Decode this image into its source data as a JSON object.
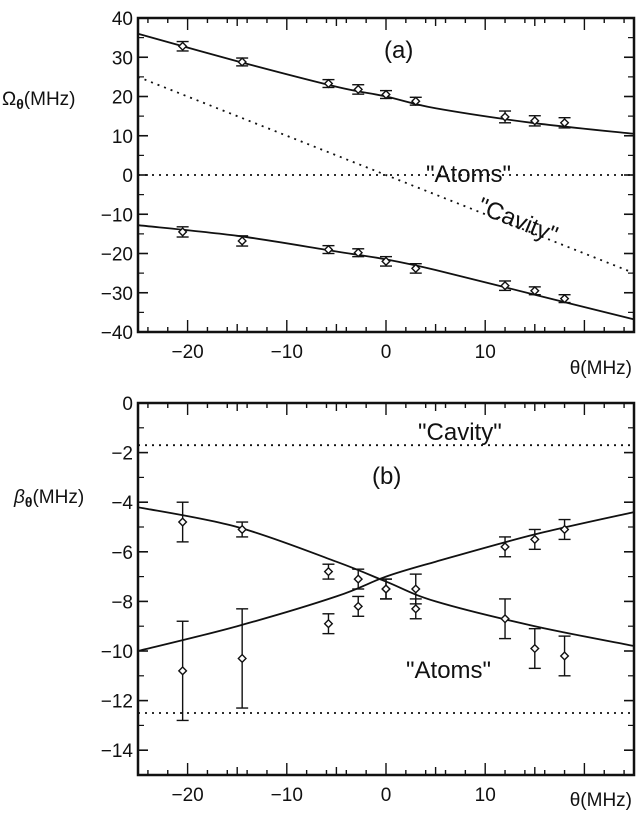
{
  "chart_data": [
    {
      "type": "scatter",
      "panel_label": "(a)",
      "ylabel_symbol": "Ω",
      "ylabel_sub": "θ",
      "ylabel_unit": "(MHz)",
      "xlabel": "θ(MHz)",
      "xlim": [
        -25,
        25
      ],
      "ylim": [
        -40,
        40
      ],
      "xticks": [
        -20,
        -10,
        0,
        10
      ],
      "yticks": [
        40,
        30,
        20,
        10,
        0,
        -10,
        -20,
        -30,
        -40
      ],
      "series": [
        {
          "x": [
            -20.5,
            -14.5,
            -5.8,
            -2.8,
            0.0,
            3.0,
            12.0,
            15.0,
            18.0
          ],
          "y": [
            32.8,
            28.8,
            23.3,
            21.8,
            20.5,
            18.8,
            14.8,
            13.8,
            13.3
          ],
          "err": [
            1.2,
            1.0,
            1.0,
            1.2,
            1.0,
            1.0,
            1.5,
            1.3,
            1.3
          ],
          "fit": [
            [
              -25,
              36.0
            ],
            [
              -15,
              29.0
            ],
            [
              -5,
              22.5
            ],
            [
              0,
              20.0
            ],
            [
              5,
              17.0
            ],
            [
              15,
              13.2
            ],
            [
              25,
              10.5
            ]
          ]
        },
        {
          "x": [
            -20.5,
            -14.5,
            -5.8,
            -2.8,
            0.0,
            3.0,
            12.0,
            15.0,
            18.0
          ],
          "y": [
            -14.5,
            -16.8,
            -19.0,
            -19.8,
            -22.0,
            -23.8,
            -28.2,
            -29.5,
            -31.5
          ],
          "err": [
            1.3,
            1.3,
            1.0,
            1.0,
            1.2,
            1.2,
            1.2,
            1.0,
            1.0
          ],
          "fit": [
            [
              -25,
              -12.8
            ],
            [
              -15,
              -15.5
            ],
            [
              -5,
              -19.5
            ],
            [
              0,
              -21.5
            ],
            [
              5,
              -24.2
            ],
            [
              15,
              -30.5
            ],
            [
              25,
              -36.8
            ]
          ]
        }
      ],
      "reference_lines": [
        {
          "label": "\"Atoms\"",
          "points": [
            [
              -25,
              0
            ],
            [
              25,
              0
            ]
          ]
        },
        {
          "label": "\"Cavity\"",
          "points": [
            [
              -25,
              25
            ],
            [
              25,
              -25
            ]
          ]
        }
      ]
    },
    {
      "type": "scatter",
      "panel_label": "(b)",
      "ylabel_symbol": "β",
      "ylabel_sub": "θ",
      "ylabel_unit": "(MHz)",
      "xlabel": "θ(MHz)",
      "xlim": [
        -25,
        25
      ],
      "ylim": [
        -15,
        0
      ],
      "xticks": [
        -20,
        -10,
        0,
        10
      ],
      "yticks": [
        0,
        -2,
        -4,
        -6,
        -8,
        -10,
        -12,
        -14
      ],
      "series": [
        {
          "x": [
            -20.5,
            -14.5,
            -5.8,
            -2.8,
            0.0,
            3.0,
            12.0,
            15.0,
            18.0
          ],
          "y": [
            -4.8,
            -5.1,
            -6.8,
            -7.1,
            -7.5,
            -7.5,
            -8.7,
            -9.9,
            -10.2
          ],
          "err": [
            0.8,
            0.3,
            0.3,
            0.4,
            0.4,
            0.6,
            0.8,
            0.8,
            0.8
          ],
          "fit": [
            [
              -25,
              -4.2
            ],
            [
              -15,
              -5.0
            ],
            [
              -5,
              -6.4
            ],
            [
              0,
              -7.2
            ],
            [
              5,
              -8.0
            ],
            [
              15,
              -9.0
            ],
            [
              25,
              -9.8
            ]
          ]
        },
        {
          "x": [
            -20.5,
            -14.5,
            -5.8,
            -2.8,
            0.0,
            3.0,
            12.0,
            15.0,
            18.0
          ],
          "y": [
            -10.8,
            -10.3,
            -8.9,
            -8.2,
            -7.5,
            -8.3,
            -5.8,
            -5.5,
            -5.1
          ],
          "err": [
            2.0,
            2.0,
            0.4,
            0.4,
            0.4,
            0.4,
            0.4,
            0.4,
            0.4
          ],
          "fit": [
            [
              -25,
              -10.0
            ],
            [
              -15,
              -9.0
            ],
            [
              -5,
              -7.8
            ],
            [
              0,
              -7.0
            ],
            [
              5,
              -6.4
            ],
            [
              15,
              -5.3
            ],
            [
              25,
              -4.4
            ]
          ]
        }
      ],
      "reference_lines": [
        {
          "label": "\"Cavity\"",
          "points": [
            [
              -25,
              -1.7
            ],
            [
              25,
              -1.7
            ]
          ]
        },
        {
          "label": "\"Atoms\"",
          "points": [
            [
              -25,
              -12.5
            ],
            [
              25,
              -12.5
            ]
          ]
        }
      ]
    }
  ]
}
